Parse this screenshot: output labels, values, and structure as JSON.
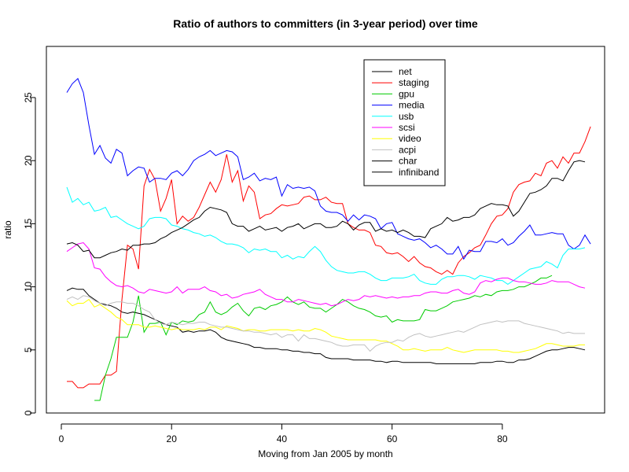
{
  "chart_data": {
    "type": "line",
    "title": "Ratio of authors to committers (in 3-year period) over time",
    "xlabel": "Moving from Jan 2005 by month",
    "ylabel": "ratio",
    "xlim": [
      1,
      95
    ],
    "ylim": [
      0,
      27
    ],
    "x_ticks": [
      0,
      20,
      40,
      60,
      80
    ],
    "y_ticks": [
      0,
      5,
      10,
      15,
      20,
      25
    ],
    "grid": false,
    "legend_position": "top-center",
    "series": [
      {
        "name": "net",
        "color": "#000000",
        "start": 1,
        "values": [
          9.7,
          9.9,
          9.8,
          9.8,
          9.3,
          9.0,
          8.7,
          8.6,
          8.5,
          8.3,
          8.0,
          7.9,
          8.0,
          7.9,
          7.8,
          7.6,
          7.4,
          7.2,
          7.0,
          6.9,
          6.8,
          6.4,
          6.5,
          6.4,
          6.5,
          6.5,
          6.6,
          6.4,
          6.0,
          5.8,
          5.7,
          5.6,
          5.5,
          5.4,
          5.2,
          5.2,
          5.1,
          5.1,
          5.1,
          5.0,
          5.0,
          4.9,
          4.9,
          4.8,
          4.8,
          4.7,
          4.7,
          4.4,
          4.3,
          4.3,
          4.3,
          4.3,
          4.2,
          4.2,
          4.2,
          4.2,
          4.1,
          4.1,
          4.0,
          4.1,
          4.1,
          4.0,
          4.0,
          4.0,
          4.0,
          4.0,
          4.0,
          3.9,
          3.9,
          3.9,
          3.9,
          3.9,
          3.9,
          3.9,
          3.9,
          4.0,
          4.0,
          4.0,
          4.1,
          4.1,
          4.0,
          4.0,
          4.2,
          4.2,
          4.3,
          4.5,
          4.7,
          4.9,
          5.0,
          5.0,
          5.1,
          5.2,
          5.2,
          5.1,
          5.0
        ]
      },
      {
        "name": "staging",
        "color": "#ff0000",
        "start": 1,
        "values": [
          2.5,
          2.5,
          2.0,
          2.0,
          2.3,
          2.3,
          2.3,
          3.0,
          3.0,
          3.3,
          9.0,
          13.3,
          13.0,
          11.4,
          18.0,
          19.3,
          18.5,
          16.0,
          17.0,
          18.5,
          15.0,
          15.6,
          15.2,
          15.5,
          16.3,
          17.3,
          18.3,
          17.5,
          18.5,
          20.5,
          18.3,
          19.2,
          16.8,
          18.0,
          17.5,
          15.4,
          15.7,
          15.8,
          16.2,
          16.5,
          16.4,
          16.5,
          16.6,
          17.1,
          17.2,
          16.9,
          16.9,
          17.1,
          16.7,
          16.6,
          16.6,
          15.0,
          14.7,
          14.5,
          14.5,
          14.3,
          13.3,
          13.2,
          12.7,
          12.6,
          12.7,
          12.4,
          12.0,
          12.4,
          11.9,
          11.6,
          11.5,
          11.2,
          11.0,
          11.3,
          11.0,
          11.9,
          12.4,
          12.7,
          13.1,
          13.3,
          14.1,
          15.0,
          15.6,
          15.7,
          16.2,
          17.5,
          18.1,
          18.3,
          18.4,
          19.0,
          18.8,
          19.8,
          20.0,
          19.4,
          20.3,
          19.8,
          20.6,
          20.6,
          21.5,
          22.7
        ]
      },
      {
        "name": "gpu",
        "color": "#00cc00",
        "start": 6,
        "values": [
          1.0,
          1.0,
          3.0,
          4.3,
          6.0,
          6.0,
          6.0,
          7.2,
          9.3,
          6.4,
          7.1,
          7.1,
          7.2,
          6.2,
          7.2,
          7.0,
          7.3,
          7.2,
          7.3,
          7.8,
          8.0,
          8.8,
          8.0,
          7.8,
          8.0,
          8.4,
          8.7,
          8.1,
          7.7,
          8.3,
          8.4,
          8.2,
          8.5,
          8.6,
          8.8,
          9.2,
          8.8,
          8.6,
          8.8,
          8.4,
          8.3,
          8.3,
          8.0,
          8.3,
          8.6,
          9.0,
          8.8,
          8.5,
          8.3,
          8.2,
          8.0,
          7.7,
          7.6,
          7.7,
          7.2,
          7.4,
          7.3,
          7.3,
          7.3,
          7.4,
          8.2,
          8.1,
          8.1,
          8.3,
          8.5,
          8.8,
          8.9,
          9.0,
          9.1,
          9.3,
          9.2,
          9.4,
          9.3,
          9.6,
          9.7,
          9.7,
          9.8,
          10.0,
          10.0,
          10.2,
          10.4,
          10.7,
          10.7,
          10.9
        ]
      },
      {
        "name": "media",
        "color": "#0000ff",
        "start": 1,
        "values": [
          25.4,
          26.1,
          26.5,
          25.4,
          22.8,
          20.5,
          21.2,
          20.2,
          19.8,
          20.9,
          20.6,
          18.8,
          19.2,
          19.5,
          19.4,
          18.3,
          18.6,
          18.6,
          18.5,
          19.0,
          19.2,
          18.8,
          19.3,
          20.0,
          20.3,
          20.5,
          20.8,
          20.4,
          20.6,
          20.8,
          20.7,
          20.3,
          18.5,
          18.7,
          19.0,
          18.4,
          18.6,
          18.5,
          18.7,
          17.2,
          18.1,
          17.8,
          17.9,
          17.8,
          17.9,
          17.6,
          16.4,
          16.0,
          15.9,
          15.9,
          15.7,
          15.2,
          15.7,
          15.3,
          15.7,
          15.6,
          15.4,
          14.6,
          15.0,
          15.1,
          14.2,
          14.0,
          13.8,
          13.7,
          13.8,
          13.5,
          13.1,
          13.3,
          13.0,
          12.6,
          12.6,
          13.2,
          12.2,
          12.9,
          12.8,
          12.8,
          13.6,
          13.6,
          13.5,
          13.8,
          13.3,
          13.5,
          14.0,
          14.4,
          14.9,
          14.1,
          14.1,
          14.2,
          14.3,
          14.2,
          14.2,
          13.3,
          13.0,
          13.3,
          14.1,
          13.4
        ]
      },
      {
        "name": "usb",
        "color": "#00ffff",
        "start": 1,
        "values": [
          17.9,
          16.7,
          17.0,
          16.5,
          16.7,
          16.0,
          16.1,
          16.3,
          15.5,
          15.6,
          15.3,
          15.0,
          14.8,
          14.6,
          14.8,
          15.4,
          15.5,
          15.5,
          15.4,
          14.9,
          14.8,
          14.6,
          14.5,
          14.3,
          14.2,
          14.0,
          14.1,
          13.9,
          13.6,
          13.4,
          13.4,
          13.3,
          13.1,
          12.7,
          13.0,
          12.9,
          13.0,
          12.8,
          12.8,
          12.3,
          12.5,
          12.2,
          12.4,
          12.3,
          12.8,
          13.2,
          12.8,
          12.1,
          11.6,
          11.3,
          11.2,
          11.1,
          11.1,
          11.2,
          11.2,
          11.0,
          10.7,
          10.5,
          10.5,
          10.7,
          10.7,
          10.7,
          10.8,
          11.0,
          10.5,
          10.3,
          10.2,
          10.2,
          10.6,
          10.8,
          10.8,
          10.9,
          10.9,
          10.8,
          10.6,
          10.9,
          10.8,
          10.7,
          10.5,
          10.5,
          10.2,
          10.5,
          10.8,
          11.1,
          11.4,
          11.5,
          11.6,
          12.0,
          11.8,
          11.5,
          12.5,
          13.0,
          13.0,
          13.0,
          13.1
        ]
      },
      {
        "name": "scsi",
        "color": "#ff00ff",
        "start": 1,
        "values": [
          12.8,
          13.1,
          13.4,
          13.5,
          13.0,
          11.5,
          11.4,
          10.8,
          10.4,
          10.1,
          10.0,
          10.1,
          9.9,
          9.6,
          9.5,
          9.8,
          9.7,
          9.6,
          9.5,
          9.6,
          10.0,
          9.5,
          9.8,
          9.8,
          9.8,
          10.0,
          9.7,
          9.6,
          9.3,
          9.4,
          9.1,
          9.2,
          9.4,
          9.5,
          9.6,
          9.8,
          9.4,
          9.2,
          9.0,
          9.0,
          8.8,
          8.8,
          9.0,
          8.9,
          8.8,
          8.7,
          8.6,
          8.7,
          8.5,
          8.6,
          8.8,
          9.0,
          8.9,
          9.0,
          9.3,
          9.2,
          9.3,
          9.2,
          9.1,
          9.2,
          9.1,
          9.2,
          9.2,
          9.3,
          9.3,
          9.5,
          9.6,
          9.6,
          9.5,
          9.5,
          9.7,
          9.8,
          9.5,
          9.4,
          9.6,
          10.3,
          10.5,
          10.4,
          10.6,
          10.7,
          10.7,
          10.5,
          10.4,
          10.4,
          10.3,
          10.2,
          10.2,
          10.3,
          10.5,
          10.4,
          10.4,
          10.4,
          10.2,
          10.0,
          9.9
        ]
      },
      {
        "name": "video",
        "color": "#ffff00",
        "start": 1,
        "values": [
          8.9,
          8.5,
          8.7,
          8.7,
          9.0,
          8.4,
          8.6,
          8.3,
          8.0,
          7.6,
          7.4,
          7.0,
          7.0,
          7.0,
          6.8,
          6.8,
          6.9,
          6.8,
          6.7,
          6.6,
          6.7,
          6.6,
          6.6,
          6.6,
          6.7,
          6.6,
          6.8,
          6.8,
          6.6,
          6.9,
          6.8,
          6.7,
          6.5,
          6.6,
          6.6,
          6.5,
          6.5,
          6.6,
          6.6,
          6.6,
          6.6,
          6.5,
          6.6,
          6.5,
          6.5,
          6.7,
          6.6,
          6.4,
          6.1,
          6.0,
          5.9,
          5.8,
          5.8,
          5.8,
          5.8,
          5.8,
          5.8,
          5.7,
          5.7,
          5.5,
          5.3,
          5.0,
          5.0,
          5.1,
          5.0,
          4.9,
          5.0,
          5.0,
          5.0,
          5.2,
          5.0,
          4.9,
          4.8,
          4.9,
          5.0,
          5.0,
          5.0,
          5.0,
          5.0,
          4.9,
          4.9,
          4.8,
          4.8,
          4.9,
          5.0,
          5.1,
          5.3,
          5.5,
          5.5,
          5.4,
          5.3,
          5.3,
          5.3,
          5.4,
          5.4
        ]
      },
      {
        "name": "acpi",
        "color": "#c0c0c0",
        "start": 1,
        "values": [
          9.0,
          9.2,
          9.0,
          9.3,
          9.2,
          8.9,
          8.7,
          8.5,
          8.7,
          8.8,
          8.8,
          8.7,
          8.7,
          8.5,
          8.2,
          8.0,
          7.4,
          7.1,
          7.0,
          7.2,
          7.1,
          7.0,
          7.1,
          7.1,
          7.2,
          7.2,
          7.0,
          6.9,
          6.8,
          6.8,
          6.7,
          6.6,
          6.5,
          6.5,
          6.4,
          6.4,
          6.3,
          6.2,
          6.3,
          6.0,
          6.2,
          6.2,
          5.7,
          6.2,
          5.9,
          5.9,
          5.8,
          5.7,
          5.6,
          5.4,
          5.3,
          5.3,
          5.4,
          5.4,
          5.4,
          4.9,
          5.3,
          5.5,
          5.6,
          5.6,
          5.8,
          5.7,
          6.0,
          6.2,
          6.3,
          6.1,
          6.0,
          6.1,
          6.2,
          6.3,
          6.4,
          6.5,
          6.4,
          6.6,
          6.8,
          7.0,
          7.1,
          7.2,
          7.3,
          7.2,
          7.3,
          7.3,
          7.3,
          7.1,
          7.0,
          6.9,
          6.8,
          6.7,
          6.6,
          6.5,
          6.3,
          6.4,
          6.3,
          6.3,
          6.3
        ]
      },
      {
        "name": "char",
        "color": "#000000",
        "start": 1,
        "values": [
          13.4,
          13.5,
          13.3,
          12.8,
          12.9,
          12.3,
          12.3,
          12.5,
          12.7,
          12.8,
          13.0,
          12.9,
          13.3,
          13.3,
          13.4,
          13.4,
          13.5,
          13.8,
          14.0,
          14.3,
          14.5,
          14.7,
          15.0,
          15.3,
          15.5,
          16.0,
          16.3,
          16.2,
          16.1,
          15.9,
          15.0,
          14.8,
          14.8,
          14.4,
          14.6,
          14.8,
          14.5,
          14.6,
          14.7,
          14.4,
          14.7,
          14.8,
          15.0,
          14.6,
          14.8,
          15.0,
          15.0,
          14.7,
          14.7,
          14.8,
          15.2,
          15.0,
          14.5,
          14.9,
          15.1,
          15.1,
          14.4,
          14.6,
          14.4,
          14.5,
          14.3,
          14.5,
          14.3,
          14.0,
          14.0,
          13.9,
          14.6,
          14.8,
          15.0,
          15.5,
          15.2,
          15.3,
          15.5,
          15.5,
          15.7,
          16.2,
          16.4,
          16.6,
          16.5,
          16.5,
          16.4,
          15.6,
          16.0,
          16.7,
          17.4,
          17.5,
          17.7,
          18.0,
          18.6,
          18.6,
          18.4,
          19.2,
          19.9,
          20.0,
          19.9
        ]
      },
      {
        "name": "infiniband",
        "color": "#000000",
        "start": 1,
        "values": []
      }
    ]
  }
}
